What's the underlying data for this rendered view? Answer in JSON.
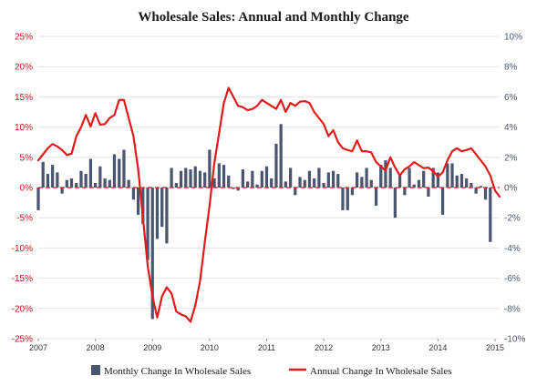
{
  "chart_data": {
    "type": "bar+line",
    "title": "Wholesale Sales: Annual and Monthly Change",
    "x_tick_labels": [
      "2007",
      "2008",
      "2009",
      "2010",
      "2011",
      "2012",
      "2013",
      "2014",
      "2015"
    ],
    "x_range": [
      2007.0,
      2015.08
    ],
    "left_axis": {
      "ticks": [
        "25%",
        "20%",
        "15%",
        "10%",
        "5%",
        "0%",
        "-5%",
        "-10%",
        "-15%",
        "-20%",
        "-25%"
      ],
      "range": [
        -25,
        25
      ],
      "color": "#c8151b"
    },
    "right_axis": {
      "ticks": [
        "10%",
        "8%",
        "6%",
        "4%",
        "2%",
        "0%",
        "-2%",
        "-4%",
        "-6%",
        "-8%",
        "-10%"
      ],
      "range": [
        -10,
        10
      ],
      "color": "#4a5670"
    },
    "grid": "horizontal",
    "zero_line_style": "dashed red",
    "legend_position": "bottom",
    "series": [
      {
        "name": "Monthly Change In Wholesale Sales",
        "type": "bar",
        "axis": "right",
        "color": "#4a5670",
        "x": [
          2007.0,
          2007.083,
          2007.167,
          2007.25,
          2007.333,
          2007.417,
          2007.5,
          2007.583,
          2007.667,
          2007.75,
          2007.833,
          2007.917,
          2008.0,
          2008.083,
          2008.167,
          2008.25,
          2008.333,
          2008.417,
          2008.5,
          2008.583,
          2008.667,
          2008.75,
          2008.833,
          2008.917,
          2009.0,
          2009.083,
          2009.167,
          2009.25,
          2009.333,
          2009.417,
          2009.5,
          2009.583,
          2009.667,
          2009.75,
          2009.833,
          2009.917,
          2010.0,
          2010.083,
          2010.167,
          2010.25,
          2010.333,
          2010.417,
          2010.5,
          2010.583,
          2010.667,
          2010.75,
          2010.833,
          2010.917,
          2011.0,
          2011.083,
          2011.167,
          2011.25,
          2011.333,
          2011.417,
          2011.5,
          2011.583,
          2011.667,
          2011.75,
          2011.833,
          2011.917,
          2012.0,
          2012.083,
          2012.167,
          2012.25,
          2012.333,
          2012.417,
          2012.5,
          2012.583,
          2012.667,
          2012.75,
          2012.833,
          2012.917,
          2013.0,
          2013.083,
          2013.167,
          2013.25,
          2013.333,
          2013.417,
          2013.5,
          2013.583,
          2013.667,
          2013.75,
          2013.833,
          2013.917,
          2014.0,
          2014.083,
          2014.167,
          2014.25,
          2014.333,
          2014.417,
          2014.5,
          2014.583,
          2014.667,
          2014.75,
          2014.833,
          2014.917
        ],
        "values": [
          -1.5,
          1.7,
          0.9,
          1.5,
          1.0,
          -0.4,
          0.5,
          0.6,
          0.3,
          1.1,
          0.9,
          1.9,
          0.3,
          1.4,
          0.6,
          0.5,
          2.2,
          1.9,
          2.5,
          0.5,
          -0.8,
          -1.8,
          -2.4,
          -4.8,
          -8.7,
          -3.4,
          -2.6,
          -3.7,
          1.3,
          0.3,
          1.1,
          1.3,
          1.2,
          1.4,
          1.1,
          1.0,
          2.5,
          0.6,
          1.6,
          1.5,
          0.8,
          -0.1,
          -0.2,
          1.2,
          0.4,
          1.1,
          0.2,
          1.1,
          1.4,
          0.6,
          2.9,
          4.2,
          0.4,
          1.3,
          -0.5,
          0.7,
          0.5,
          1.1,
          0.6,
          1.3,
          0.3,
          1.0,
          1.1,
          0.9,
          -1.5,
          -1.5,
          -0.5,
          1.0,
          0.7,
          1.3,
          0.5,
          -1.2,
          1.5,
          1.8,
          1.3,
          -2.0,
          0.8,
          -0.5,
          1.3,
          0.2,
          0.5,
          1.1,
          -0.6,
          1.3,
          1.0,
          -1.8,
          1.6,
          1.6,
          0.8,
          0.9,
          0.6,
          0.3,
          -0.4,
          0.1,
          -0.8,
          -3.6
        ]
      },
      {
        "name": "Annual Change In Wholesale Sales",
        "type": "line",
        "axis": "left",
        "color": "#e21a1a",
        "x": [
          2007.0,
          2007.083,
          2007.167,
          2007.25,
          2007.333,
          2007.417,
          2007.5,
          2007.583,
          2007.667,
          2007.75,
          2007.833,
          2007.917,
          2008.0,
          2008.083,
          2008.167,
          2008.25,
          2008.333,
          2008.417,
          2008.5,
          2008.583,
          2008.667,
          2008.75,
          2008.833,
          2008.917,
          2009.0,
          2009.083,
          2009.167,
          2009.25,
          2009.333,
          2009.417,
          2009.5,
          2009.583,
          2009.667,
          2009.75,
          2009.833,
          2009.917,
          2010.0,
          2010.083,
          2010.167,
          2010.25,
          2010.333,
          2010.417,
          2010.5,
          2010.583,
          2010.667,
          2010.75,
          2010.833,
          2010.917,
          2011.0,
          2011.083,
          2011.167,
          2011.25,
          2011.333,
          2011.417,
          2011.5,
          2011.583,
          2011.667,
          2011.75,
          2011.833,
          2011.917,
          2012.0,
          2012.083,
          2012.167,
          2012.25,
          2012.333,
          2012.417,
          2012.5,
          2012.583,
          2012.667,
          2012.75,
          2012.833,
          2012.917,
          2013.0,
          2013.083,
          2013.167,
          2013.25,
          2013.333,
          2013.417,
          2013.5,
          2013.583,
          2013.667,
          2013.75,
          2013.833,
          2013.917,
          2014.0,
          2014.083,
          2014.167,
          2014.25,
          2014.333,
          2014.417,
          2014.5,
          2014.583,
          2014.667,
          2014.75,
          2014.833,
          2014.917,
          2015.0,
          2015.08
        ],
        "values": [
          4.5,
          5.5,
          6.5,
          7.2,
          6.8,
          6.2,
          5.4,
          5.6,
          8.5,
          10.0,
          12.0,
          10.1,
          12.3,
          10.4,
          10.5,
          11.5,
          12.0,
          14.5,
          14.5,
          11.5,
          8.5,
          3.0,
          -5.0,
          -13.0,
          -18.0,
          -21.5,
          -18.0,
          -16.5,
          -17.5,
          -20.5,
          -21.0,
          -21.3,
          -22.2,
          -19.5,
          -15.5,
          -9.0,
          -3.0,
          4.0,
          9.0,
          14.0,
          16.5,
          15.0,
          13.5,
          13.3,
          12.8,
          13.0,
          13.5,
          14.5,
          14.0,
          13.5,
          13.0,
          14.5,
          12.5,
          14.0,
          13.5,
          14.2,
          14.3,
          14.0,
          12.5,
          11.5,
          10.5,
          8.5,
          9.5,
          7.5,
          6.5,
          6.2,
          6.0,
          7.8,
          6.0,
          6.0,
          5.8,
          4.2,
          3.5,
          2.8,
          5.0,
          3.3,
          2.0,
          3.0,
          3.5,
          4.2,
          3.7,
          3.2,
          3.3,
          2.7,
          1.8,
          2.5,
          4.5,
          6.0,
          6.5,
          6.0,
          6.2,
          6.5,
          5.5,
          4.5,
          3.5,
          2.0,
          -0.5,
          -1.5
        ]
      }
    ]
  }
}
